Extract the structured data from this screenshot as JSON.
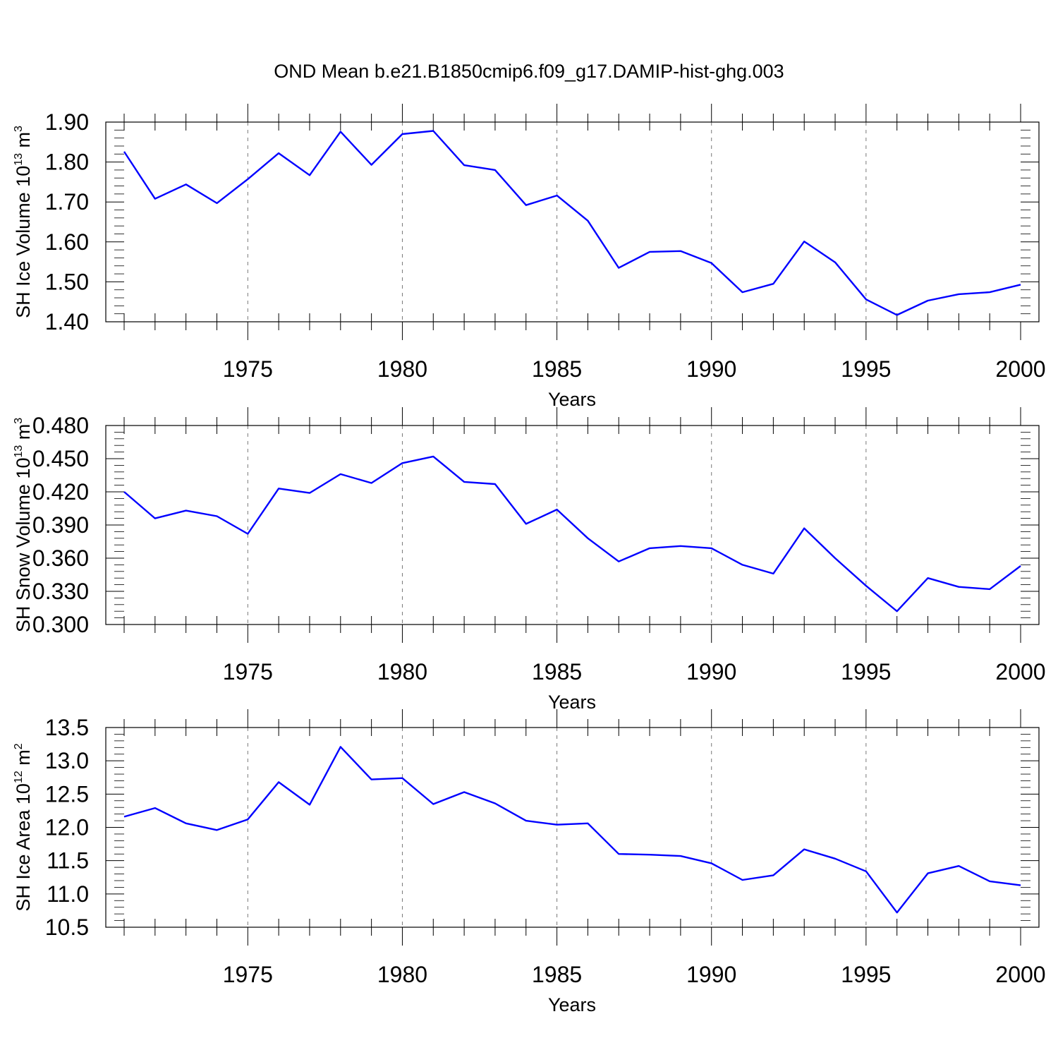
{
  "title": "OND Mean b.e21.B1850cmip6.f09_g17.DAMIP-hist-ghg.003",
  "colors": {
    "line": "#0000ff",
    "axis": "#000000",
    "grid": "#777777"
  },
  "chart_data": [
    {
      "type": "line",
      "ylabel": {
        "text": "SH Ice Volume 10",
        "sup1": "13",
        "mid": " m",
        "sup2": "3"
      },
      "xlabel": "Years",
      "xlim": [
        1971,
        2000
      ],
      "ylim": [
        1.4,
        1.9
      ],
      "x_ticks": [
        1975,
        1980,
        1985,
        1990,
        1995,
        2000
      ],
      "x_tick_labels": [
        "1975",
        "1980",
        "1985",
        "1990",
        "1995",
        "2000"
      ],
      "y_ticks": [
        1.4,
        1.5,
        1.6,
        1.7,
        1.8,
        1.9
      ],
      "y_tick_labels": [
        "1.40",
        "1.50",
        "1.60",
        "1.70",
        "1.80",
        "1.90"
      ],
      "grid": "vertical dashed at major x ticks",
      "x": [
        1971,
        1972,
        1973,
        1974,
        1975,
        1976,
        1977,
        1978,
        1979,
        1980,
        1981,
        1982,
        1983,
        1984,
        1985,
        1986,
        1987,
        1988,
        1989,
        1990,
        1991,
        1992,
        1993,
        1994,
        1995,
        1996,
        1997,
        1998,
        1999,
        2000
      ],
      "values": [
        1.826,
        1.708,
        1.744,
        1.697,
        1.757,
        1.822,
        1.767,
        1.876,
        1.793,
        1.87,
        1.878,
        1.792,
        1.78,
        1.692,
        1.716,
        1.653,
        1.535,
        1.575,
        1.577,
        1.547,
        1.474,
        1.495,
        1.601,
        1.549,
        1.456,
        1.417,
        1.453,
        1.469,
        1.474,
        1.493
      ]
    },
    {
      "type": "line",
      "ylabel": {
        "text": "SH Snow Volume 10",
        "sup1": "13",
        "mid": " m",
        "sup2": "3"
      },
      "xlabel": "Years",
      "xlim": [
        1971,
        2000
      ],
      "ylim": [
        0.3,
        0.48
      ],
      "x_ticks": [
        1975,
        1980,
        1985,
        1990,
        1995,
        2000
      ],
      "x_tick_labels": [
        "1975",
        "1980",
        "1985",
        "1990",
        "1995",
        "2000"
      ],
      "y_ticks": [
        0.3,
        0.33,
        0.36,
        0.39,
        0.42,
        0.45,
        0.48
      ],
      "y_tick_labels": [
        "0.300",
        "0.330",
        "0.360",
        "0.390",
        "0.420",
        "0.450",
        "0.480"
      ],
      "grid": "vertical dashed at major x ticks",
      "x": [
        1971,
        1972,
        1973,
        1974,
        1975,
        1976,
        1977,
        1978,
        1979,
        1980,
        1981,
        1982,
        1983,
        1984,
        1985,
        1986,
        1987,
        1988,
        1989,
        1990,
        1991,
        1992,
        1993,
        1994,
        1995,
        1996,
        1997,
        1998,
        1999,
        2000
      ],
      "values": [
        0.42,
        0.396,
        0.403,
        0.398,
        0.382,
        0.423,
        0.419,
        0.436,
        0.428,
        0.446,
        0.452,
        0.429,
        0.427,
        0.391,
        0.404,
        0.378,
        0.357,
        0.369,
        0.371,
        0.369,
        0.354,
        0.346,
        0.387,
        0.36,
        0.335,
        0.312,
        0.342,
        0.334,
        0.332,
        0.353
      ]
    },
    {
      "type": "line",
      "ylabel": {
        "text": "SH Ice Area 10",
        "sup1": "12",
        "mid": " m",
        "sup2": "2"
      },
      "xlabel": "Years",
      "xlim": [
        1971,
        2000
      ],
      "ylim": [
        10.5,
        13.5
      ],
      "x_ticks": [
        1975,
        1980,
        1985,
        1990,
        1995,
        2000
      ],
      "x_tick_labels": [
        "1975",
        "1980",
        "1985",
        "1990",
        "1995",
        "2000"
      ],
      "y_ticks": [
        10.5,
        11.0,
        11.5,
        12.0,
        12.5,
        13.0,
        13.5
      ],
      "y_tick_labels": [
        "10.5",
        "11.0",
        "11.5",
        "12.0",
        "12.5",
        "13.0",
        "13.5"
      ],
      "grid": "vertical dashed at major x ticks",
      "x": [
        1971,
        1972,
        1973,
        1974,
        1975,
        1976,
        1977,
        1978,
        1979,
        1980,
        1981,
        1982,
        1983,
        1984,
        1985,
        1986,
        1987,
        1988,
        1989,
        1990,
        1991,
        1992,
        1993,
        1994,
        1995,
        1996,
        1997,
        1998,
        1999,
        2000
      ],
      "values": [
        12.16,
        12.29,
        12.06,
        11.96,
        12.12,
        12.68,
        12.34,
        13.21,
        12.72,
        12.74,
        12.35,
        12.53,
        12.36,
        12.1,
        12.04,
        12.06,
        11.6,
        11.59,
        11.57,
        11.46,
        11.21,
        11.28,
        11.67,
        11.53,
        11.34,
        10.72,
        11.31,
        11.42,
        11.19,
        11.13
      ]
    }
  ]
}
